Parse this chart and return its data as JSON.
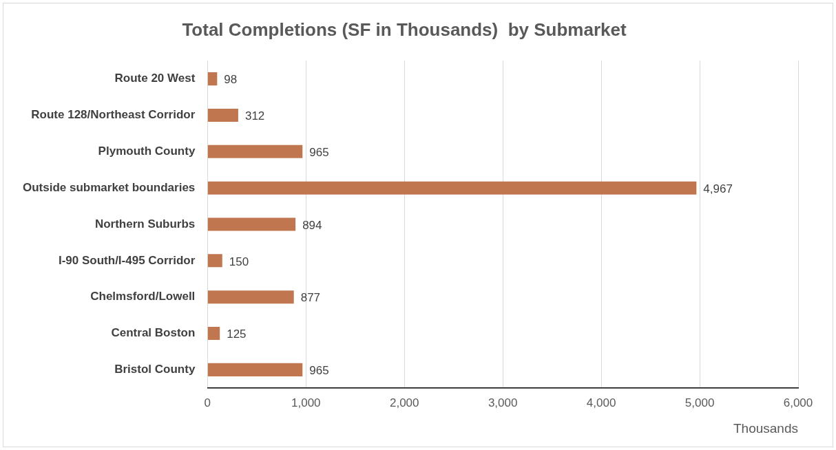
{
  "chart_data": {
    "type": "bar",
    "orientation": "horizontal",
    "title": "Total Completions (SF in Thousands)  by Submarket",
    "xlabel": "Thousands",
    "categories": [
      "Route 20 West",
      "Route 128/Northeast Corridor",
      "Plymouth County",
      "Outside submarket boundaries",
      "Northern Suburbs",
      "I-90 South/I-495 Corridor",
      "Chelmsford/Lowell",
      "Central Boston",
      "Bristol County"
    ],
    "values": [
      98,
      312,
      965,
      4967,
      894,
      150,
      877,
      125,
      965
    ],
    "color": "#c0774f",
    "xlim": [
      0,
      6000
    ],
    "xticks": [
      0,
      {
        "value": 1000,
        "label": "1,000"
      },
      {
        "value": 2000,
        "label": "2,000"
      },
      {
        "value": 3000,
        "label": "3,000"
      },
      {
        "value": 4000,
        "label": "4,000"
      },
      {
        "value": 5000,
        "label": "5,000"
      },
      {
        "value": 6000,
        "label": "6,000"
      }
    ],
    "value_labels": [
      "98",
      "312",
      "965",
      "4,967",
      "894",
      "150",
      "877",
      "125",
      "965"
    ],
    "grid": "x",
    "legend": false
  }
}
